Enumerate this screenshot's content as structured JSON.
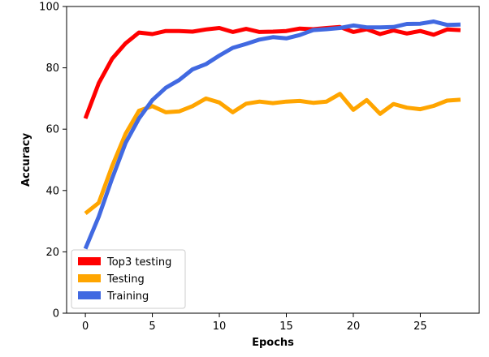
{
  "chart_data": {
    "type": "line",
    "title": "",
    "xlabel": "Epochs",
    "ylabel": "Accuracy",
    "xlim": [
      -1.4,
      29.4
    ],
    "ylim": [
      0,
      100
    ],
    "xticks": [
      0,
      5,
      10,
      15,
      20,
      25
    ],
    "yticks": [
      0,
      20,
      40,
      60,
      80,
      100
    ],
    "grid": false,
    "legend_position": "lower-left",
    "x": [
      0,
      1,
      2,
      3,
      4,
      5,
      6,
      7,
      8,
      9,
      10,
      11,
      12,
      13,
      14,
      15,
      16,
      17,
      18,
      19,
      20,
      21,
      22,
      23,
      24,
      25,
      26,
      27,
      28
    ],
    "series": [
      {
        "name": "Top3 testing",
        "color": "#ff0000",
        "values": [
          63.5,
          75,
          83,
          88,
          91.5,
          91,
          92,
          92,
          91.8,
          92.5,
          93,
          91.7,
          92.7,
          91.7,
          91.8,
          92,
          92.8,
          92.6,
          93,
          93.3,
          91.7,
          92.6,
          91,
          92.2,
          91.2,
          92,
          90.8,
          92.5,
          92.3
        ]
      },
      {
        "name": "Testing",
        "color": "#ffa500",
        "values": [
          32.5,
          36,
          48,
          58.5,
          66,
          67.5,
          65.5,
          65.8,
          67.5,
          70,
          68.7,
          65.5,
          68.3,
          69,
          68.5,
          69,
          69.2,
          68.6,
          69,
          71.5,
          66.3,
          69.5,
          65,
          68.2,
          67,
          66.5,
          67.6,
          69.3,
          69.6
        ]
      },
      {
        "name": "Training",
        "color": "#4169e1",
        "values": [
          21,
          31.5,
          44,
          55.5,
          63.5,
          69.5,
          73.5,
          76,
          79.5,
          81.2,
          84,
          86.5,
          87.8,
          89.2,
          90,
          89.6,
          90.7,
          92.3,
          92.6,
          93,
          93.8,
          93.2,
          93.2,
          93.3,
          94.3,
          94.4,
          95.1,
          94,
          94.1
        ]
      }
    ]
  }
}
